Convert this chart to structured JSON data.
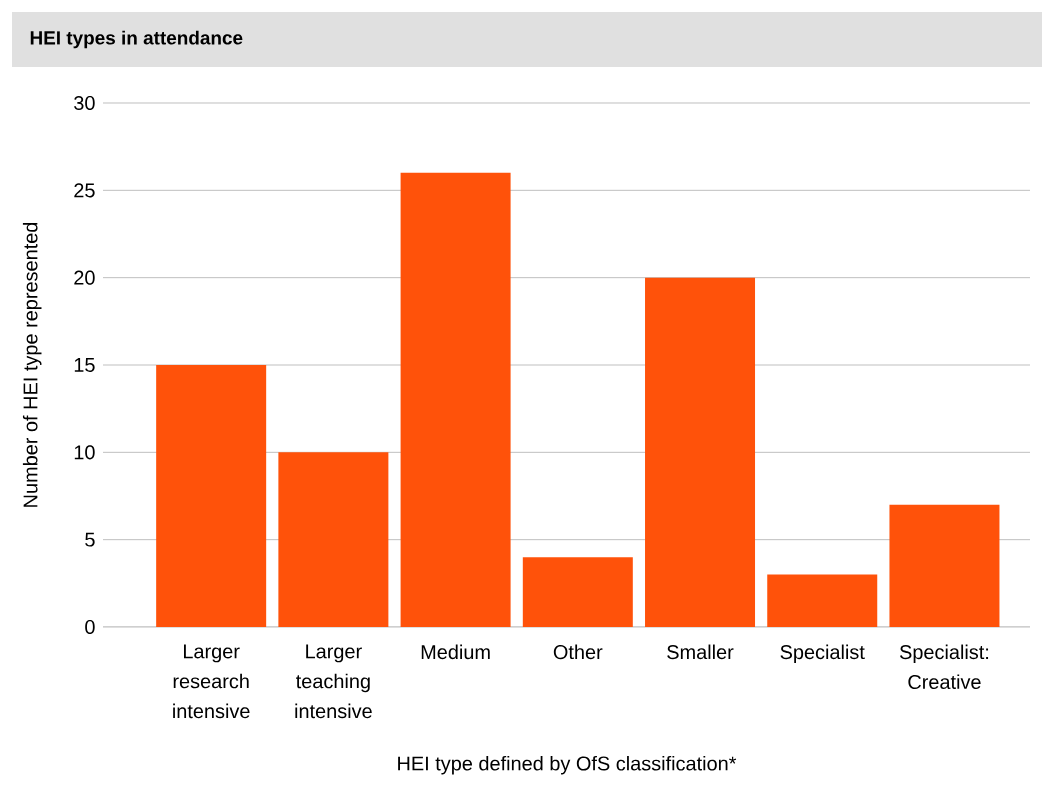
{
  "chart_data": {
    "type": "bar",
    "title": "HEI types in attendance",
    "xlabel": "HEI type defined by OfS classification*",
    "ylabel": "Number of HEI type represented",
    "categories": [
      "Larger research intensive",
      "Larger teaching intensive",
      "Medium",
      "Other",
      "Smaller",
      "Specialist",
      "Specialist: Creative"
    ],
    "values": [
      15,
      10,
      26,
      4,
      20,
      3,
      7
    ],
    "color": "#ff520a",
    "ylim": [
      0,
      30
    ],
    "yticks": [
      0,
      5,
      10,
      15,
      20,
      25,
      30
    ],
    "grid": "y"
  }
}
